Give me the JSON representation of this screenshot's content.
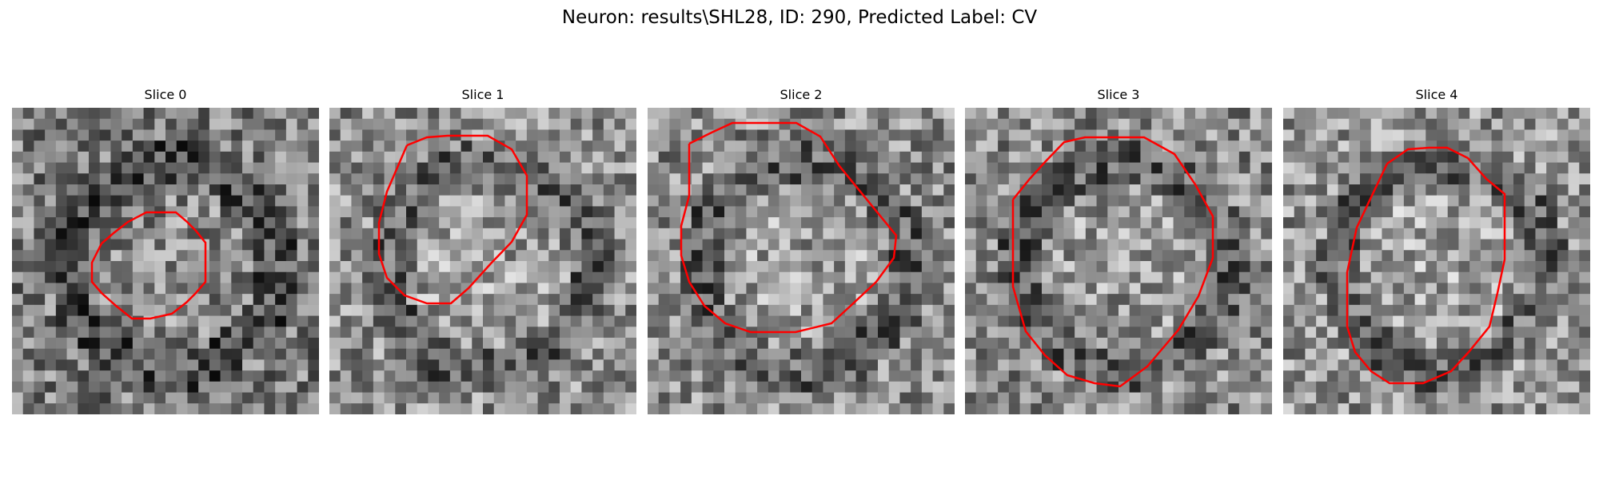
{
  "figure": {
    "title": "Neuron: results\\SHL28, ID: 290, Predicted Label: CV",
    "contour_color": "#ff0000"
  },
  "slices": [
    {
      "title": "Slice 0",
      "contour_label": "Slice 0 contour",
      "image": "grayscale microscopy patch",
      "brightness": 0.48
    },
    {
      "title": "Slice 1",
      "contour_label": "Slice 1 contour",
      "image": "grayscale microscopy patch",
      "brightness": 0.56
    },
    {
      "title": "Slice 2",
      "contour_label": "Slice 2 contour",
      "image": "grayscale microscopy patch",
      "brightness": 0.55
    },
    {
      "title": "Slice 3",
      "contour_label": "Slice 3 contour",
      "image": "grayscale microscopy patch",
      "brightness": 0.54
    },
    {
      "title": "Slice 4",
      "contour_label": "Slice 4 contour",
      "image": "grayscale microscopy patch",
      "brightness": 0.58
    }
  ]
}
